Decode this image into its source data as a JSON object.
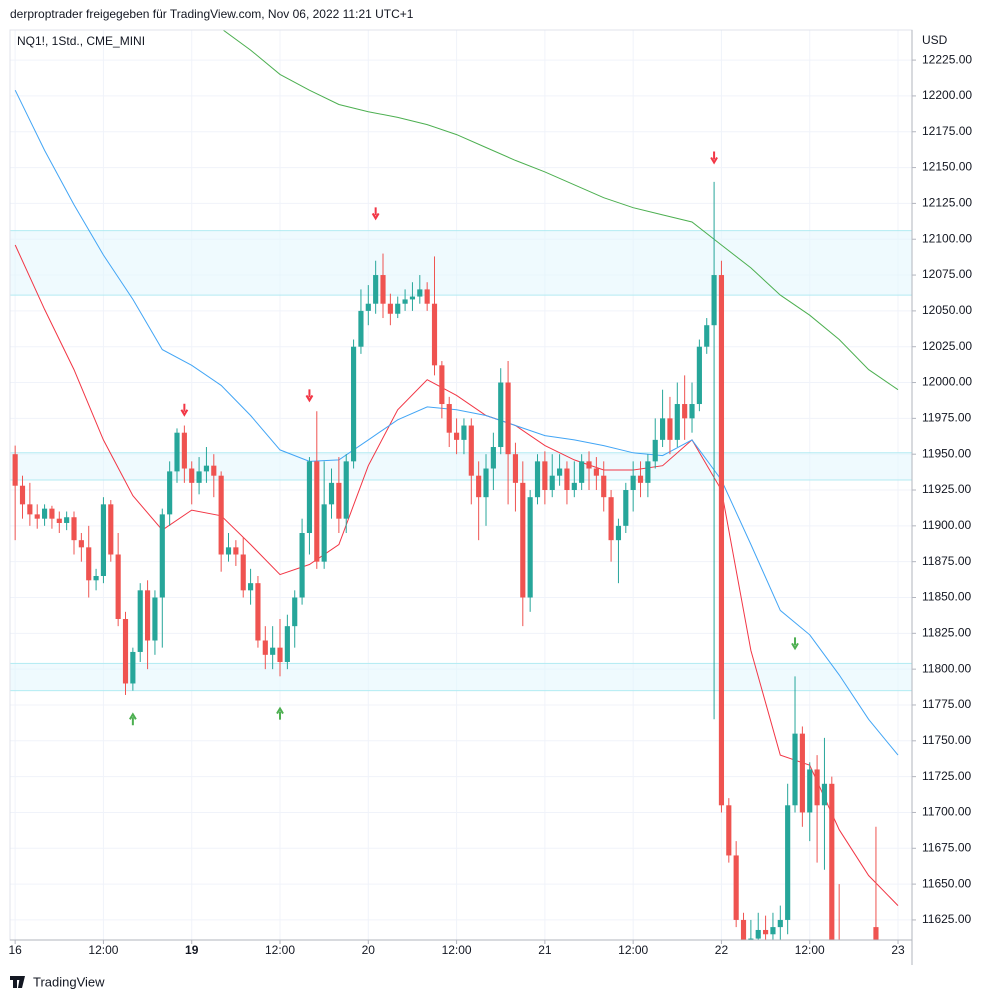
{
  "chart_data": {
    "type": "candlestick",
    "title": "derproptrader freigegeben für TradingView.com, Nov 06, 2022 11:21 UTC+1",
    "subtitle": "NQ1!, 1Std., CME_MINI",
    "y_axis_label": "USD",
    "brand": "TradingView",
    "up_color": "#26a69a",
    "down_color": "#ef5350",
    "grid": true,
    "xlim": [
      -0.7,
      121.9
    ],
    "ylim": [
      11611,
      12246
    ],
    "xticks": [
      {
        "value": 0,
        "label": "16"
      },
      {
        "value": 12,
        "label": "12:00"
      },
      {
        "value": 24,
        "label": "19",
        "bold": true
      },
      {
        "value": 36,
        "label": "12:00"
      },
      {
        "value": 48,
        "label": "20"
      },
      {
        "value": 60,
        "label": "12:00"
      },
      {
        "value": 72,
        "label": "21"
      },
      {
        "value": 84,
        "label": "12:00"
      },
      {
        "value": 96,
        "label": "22"
      },
      {
        "value": 108,
        "label": "12:00"
      },
      {
        "value": 120,
        "label": "23"
      }
    ],
    "yticks": [
      {
        "value": 11625,
        "label": "11625.00"
      },
      {
        "value": 11650,
        "label": "11650.00"
      },
      {
        "value": 11675,
        "label": "11675.00"
      },
      {
        "value": 11700,
        "label": "11700.00"
      },
      {
        "value": 11725,
        "label": "11725.00"
      },
      {
        "value": 11750,
        "label": "11750.00"
      },
      {
        "value": 11775,
        "label": "11775.00"
      },
      {
        "value": 11800,
        "label": "11800.00"
      },
      {
        "value": 11825,
        "label": "11825.00"
      },
      {
        "value": 11850,
        "label": "11850.00"
      },
      {
        "value": 11875,
        "label": "11875.00"
      },
      {
        "value": 11900,
        "label": "11900.00"
      },
      {
        "value": 11925,
        "label": "11925.00"
      },
      {
        "value": 11950,
        "label": "11950.00"
      },
      {
        "value": 11975,
        "label": "11975.00"
      },
      {
        "value": 12000,
        "label": "12000.00"
      },
      {
        "value": 12025,
        "label": "12025.00"
      },
      {
        "value": 12050,
        "label": "12050.00"
      },
      {
        "value": 12075,
        "label": "12075.00"
      },
      {
        "value": 12100,
        "label": "12100.00"
      },
      {
        "value": 12125,
        "label": "12125.00"
      },
      {
        "value": 12150,
        "label": "12150.00"
      },
      {
        "value": 12175,
        "label": "12175.00"
      },
      {
        "value": 12200,
        "label": "12200.00"
      },
      {
        "value": 12225,
        "label": "12225.00"
      }
    ],
    "open": [
      11950,
      11928,
      11915,
      11908,
      11905,
      11912,
      11905,
      11902,
      11906,
      11890,
      11885,
      11862,
      11865,
      11915,
      11880,
      11835,
      11790,
      11812,
      11855,
      11820,
      11850,
      11908,
      11938,
      11965,
      11940,
      11930,
      11938,
      11942,
      11935,
      11880,
      11885,
      11880,
      11855,
      11860,
      11820,
      11810,
      11815,
      11805,
      11830,
      11850,
      11895,
      11945,
      11875,
      11915,
      11930,
      11905,
      11945,
      12025,
      12050,
      12055,
      12075,
      12055,
      12048,
      12055,
      12058,
      12060,
      12065,
      12055,
      12012,
      11985,
      11965,
      11960,
      11970,
      11935,
      11920,
      11940,
      11955,
      12000,
      11950,
      11930,
      11850,
      11920,
      11945,
      11925,
      11935,
      11940,
      11925,
      11930,
      11945,
      11940,
      11935,
      11920,
      11890,
      11900,
      11925,
      11935,
      11930,
      11945,
      11960,
      11975,
      11960,
      11985,
      11975,
      11985,
      12025,
      12040,
      12075,
      11705,
      11670,
      11625,
      11610,
      11612,
      11618,
      11615,
      11620,
      11625,
      11705,
      11755,
      11700,
      11730,
      11705,
      11720,
      11605,
      null,
      null,
      null,
      null,
      11620
    ],
    "high": [
      11956,
      11935,
      11930,
      11915,
      11915,
      11914,
      11910,
      11910,
      11910,
      11895,
      11900,
      11870,
      11920,
      11918,
      11895,
      11840,
      11815,
      11860,
      11862,
      11855,
      11912,
      11945,
      11968,
      11970,
      11945,
      11948,
      11955,
      11950,
      11938,
      11895,
      11890,
      11892,
      11870,
      11865,
      11830,
      11830,
      11835,
      11838,
      11855,
      11905,
      11948,
      11980,
      11945,
      11940,
      11948,
      11950,
      12030,
      12065,
      12068,
      12085,
      12090,
      12062,
      12060,
      12065,
      12070,
      12075,
      12070,
      12088,
      12015,
      11990,
      11975,
      11975,
      11975,
      11945,
      11950,
      11965,
      12010,
      12015,
      11958,
      11945,
      11925,
      11950,
      11952,
      11950,
      11950,
      11945,
      11945,
      11950,
      11952,
      11948,
      11945,
      11925,
      11905,
      11930,
      11945,
      11945,
      11950,
      11975,
      11995,
      11990,
      12000,
      12005,
      12000,
      12030,
      12045,
      12140,
      12085,
      11710,
      11680,
      11630,
      11625,
      11630,
      11628,
      11630,
      11635,
      11720,
      11795,
      11760,
      11735,
      11740,
      11752,
      11725,
      11650,
      null,
      null,
      null,
      null,
      11690
    ],
    "low": [
      11890,
      11905,
      11900,
      11898,
      11900,
      11898,
      11895,
      11897,
      11880,
      11875,
      11850,
      11855,
      11860,
      11875,
      11830,
      11782,
      11785,
      11805,
      11800,
      11810,
      11815,
      11900,
      11930,
      11930,
      11915,
      11922,
      11930,
      11920,
      11868,
      11875,
      11872,
      11850,
      11845,
      11815,
      11800,
      11800,
      11795,
      11800,
      11815,
      11845,
      11880,
      11870,
      11870,
      11905,
      11895,
      11895,
      11940,
      12020,
      12040,
      12048,
      12045,
      12040,
      12045,
      12050,
      12050,
      12055,
      12050,
      12005,
      11975,
      11955,
      11950,
      11950,
      11915,
      11890,
      11900,
      11925,
      11950,
      11915,
      11910,
      11830,
      11840,
      11915,
      11915,
      11920,
      11928,
      11915,
      11920,
      11925,
      11925,
      11925,
      11910,
      11875,
      11860,
      11895,
      11910,
      11920,
      11920,
      11940,
      11955,
      11950,
      11955,
      11960,
      11965,
      11980,
      12020,
      11765,
      11700,
      11665,
      11620,
      11600,
      11595,
      11605,
      11600,
      11605,
      11610,
      11615,
      11700,
      11690,
      11680,
      11665,
      11660,
      11600,
      11590,
      null,
      null,
      null,
      null,
      11590
    ],
    "close": [
      11928,
      11915,
      11908,
      11905,
      11912,
      11905,
      11902,
      11906,
      11890,
      11885,
      11862,
      11865,
      11915,
      11880,
      11835,
      11790,
      11812,
      11855,
      11820,
      11850,
      11908,
      11938,
      11965,
      11940,
      11930,
      11938,
      11942,
      11935,
      11880,
      11885,
      11880,
      11855,
      11860,
      11820,
      11810,
      11815,
      11805,
      11830,
      11850,
      11895,
      11945,
      11875,
      11915,
      11930,
      11905,
      11945,
      12025,
      12050,
      12055,
      12075,
      12055,
      12048,
      12055,
      12058,
      12060,
      12065,
      12055,
      12012,
      11985,
      11965,
      11960,
      11970,
      11935,
      11920,
      11940,
      11955,
      12000,
      11950,
      11930,
      11850,
      11920,
      11945,
      11925,
      11935,
      11940,
      11925,
      11930,
      11945,
      11940,
      11935,
      11920,
      11890,
      11900,
      11925,
      11935,
      11930,
      11945,
      11960,
      11975,
      11960,
      11985,
      11975,
      11985,
      12025,
      12040,
      12075,
      11705,
      11670,
      11625,
      11610,
      11612,
      11618,
      11615,
      11620,
      11625,
      11705,
      11755,
      11700,
      11730,
      11705,
      11720,
      11605,
      11600,
      null,
      null,
      null,
      null,
      11600
    ],
    "series": [
      {
        "color": "#f23645",
        "x": [
          0,
          4,
          8,
          12,
          16,
          20,
          24,
          28,
          32,
          36,
          40,
          44,
          48,
          52,
          56,
          60,
          64,
          68,
          72,
          76,
          80,
          84,
          88,
          92,
          96,
          100,
          104,
          108,
          112,
          116,
          120
        ],
        "values": [
          12096,
          12051,
          12009,
          11960,
          11921,
          11897,
          11911,
          11907,
          11887,
          11866,
          11873,
          11887,
          11942,
          11981,
          12002,
          11991,
          11977,
          11970,
          11956,
          11946,
          11939,
          11939,
          11942,
          11960,
          11925,
          11813,
          11740,
          11733,
          11688,
          11656,
          11635
        ]
      },
      {
        "color": "#42a5f5",
        "x": [
          0,
          4,
          8,
          12,
          16,
          20,
          24,
          28,
          32,
          36,
          40,
          44,
          48,
          52,
          56,
          60,
          64,
          68,
          72,
          76,
          80,
          84,
          88,
          92,
          96,
          100,
          104,
          108,
          112,
          116,
          120
        ],
        "values": [
          12204,
          12162,
          12124,
          12089,
          12058,
          12023,
          12012,
          11998,
          11977,
          11953,
          11945,
          11946,
          11960,
          11974,
          11983,
          11981,
          11977,
          11970,
          11963,
          11960,
          11956,
          11951,
          11949,
          11960,
          11932,
          11887,
          11841,
          11824,
          11796,
          11765,
          11740
        ]
      },
      {
        "color": "#4caf50",
        "x": [
          28,
          32,
          36,
          40,
          44,
          48,
          52,
          56,
          60,
          64,
          68,
          72,
          76,
          80,
          84,
          88,
          92,
          96,
          100,
          104,
          108,
          112,
          116,
          120
        ],
        "values": [
          12247,
          12232,
          12215,
          12204,
          12194,
          12189,
          12185,
          12180,
          12173,
          12164,
          12155,
          12147,
          12138,
          12129,
          12122,
          12117,
          12112,
          12096,
          12080,
          12061,
          12047,
          12030,
          12009,
          11995
        ]
      }
    ],
    "zones": [
      {
        "low": 12061,
        "high": 12106,
        "color": "#e1f5fe"
      },
      {
        "low": 11932,
        "high": 11951,
        "color": "#e1f5fe"
      },
      {
        "low": 11785,
        "high": 11804,
        "color": "#e1f5fe"
      }
    ],
    "signals": [
      {
        "index": 23,
        "value": 11981,
        "direction": "down",
        "color": "#f23645"
      },
      {
        "index": 40,
        "value": 11991,
        "direction": "down",
        "color": "#f23645"
      },
      {
        "index": 49,
        "value": 12118,
        "direction": "down",
        "color": "#f23645"
      },
      {
        "index": 95,
        "value": 12157,
        "direction": "down",
        "color": "#f23645"
      },
      {
        "index": 16,
        "value": 11765,
        "direction": "up",
        "color": "#4caf50"
      },
      {
        "index": 36,
        "value": 11769,
        "direction": "up",
        "color": "#4caf50"
      },
      {
        "index": 106,
        "value": 11818,
        "direction": "down",
        "color": "#4caf50"
      }
    ]
  }
}
